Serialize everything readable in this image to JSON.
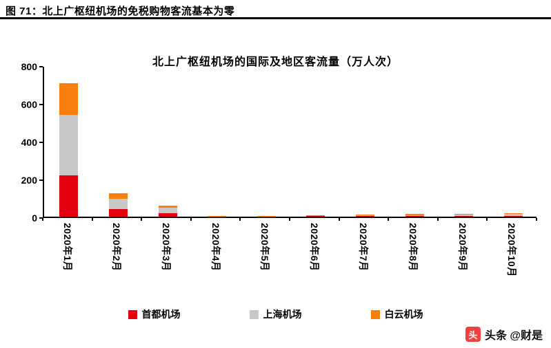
{
  "header": {
    "caption": "图  71：北上广枢纽机场的免税购物客流基本为零"
  },
  "chart_data": {
    "type": "bar",
    "stacked": true,
    "title": "北上广枢纽机场的国际及地区客流量（万人次）",
    "categories": [
      "2020年1月",
      "2020年2月",
      "2020年3月",
      "2020年4月",
      "2020年5月",
      "2020年6月",
      "2020年7月",
      "2020年8月",
      "2020年9月",
      "2020年10月"
    ],
    "series": [
      {
        "name": "首都机场",
        "color": "#e4000f",
        "values": [
          220,
          40,
          18,
          1,
          1,
          2,
          2,
          3,
          3,
          4
        ]
      },
      {
        "name": "上海机场",
        "color": "#c8c8c8",
        "values": [
          320,
          55,
          28,
          2,
          3,
          4,
          5,
          6,
          7,
          9
        ]
      },
      {
        "name": "白云机场",
        "color": "#f87e0e",
        "values": [
          165,
          28,
          11,
          1,
          1,
          2,
          4,
          5,
          5,
          7
        ]
      }
    ],
    "xlabel": "",
    "ylabel": "",
    "ylim": [
      0,
      800
    ],
    "yticks": [
      0,
      200,
      400,
      600,
      800
    ],
    "grid": false,
    "legend_position": "bottom"
  },
  "watermark": {
    "icon_glyph": "头",
    "text": "头条 @财是"
  }
}
